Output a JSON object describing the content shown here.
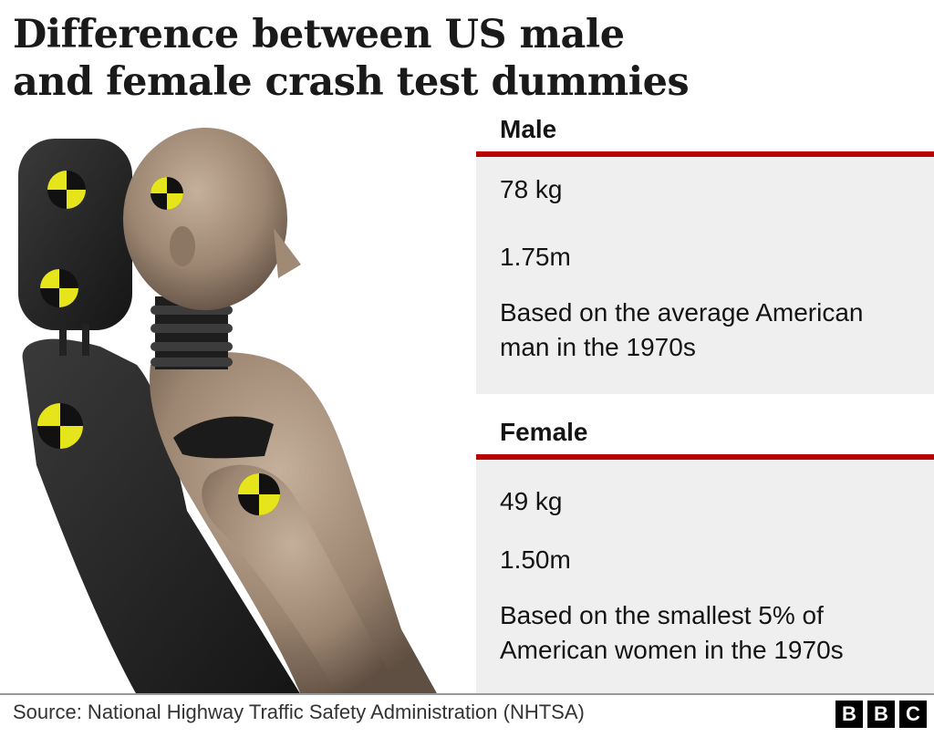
{
  "title": "Difference between US male and female crash test dummies",
  "male": {
    "heading": "Male",
    "weight": "78 kg",
    "height": "1.75m",
    "basis": "Based on the average American man in the 1970s"
  },
  "female": {
    "heading": "Female",
    "weight": "49 kg",
    "height": "1.50m",
    "basis": "Based on the smallest 5% of American women in the 1970s"
  },
  "source": "Source: National Highway Traffic Safety Administration (NHTSA)",
  "logo": {
    "letters": [
      "B",
      "B",
      "C"
    ]
  },
  "colors": {
    "accent_rule": "#b80000",
    "panel_bg": "#efefef",
    "target_yellow": "#e6e41a",
    "dummy_skin": "#9b8470",
    "seat": "#2b2b2b"
  }
}
